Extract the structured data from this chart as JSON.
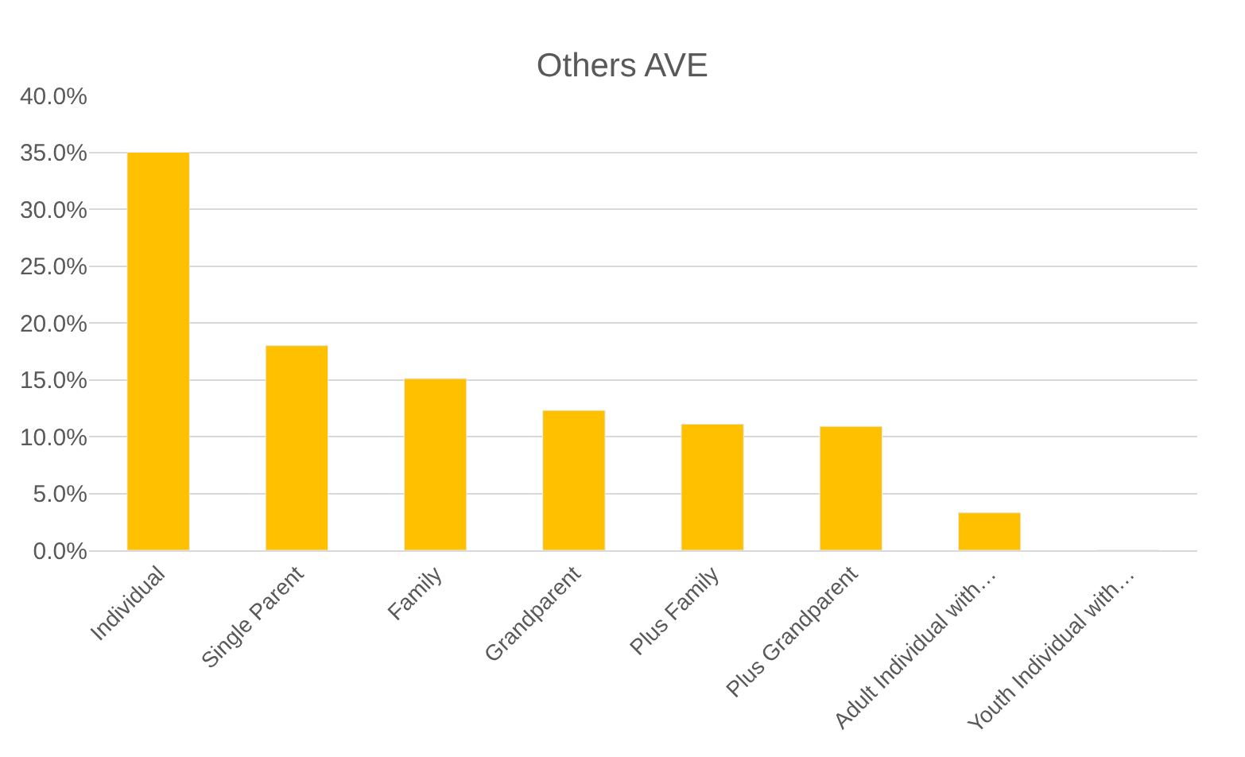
{
  "chart_data": {
    "type": "bar",
    "title": "Others AVE",
    "categories": [
      "Individual",
      "Single Parent",
      "Family",
      "Grandparent",
      "Plus Family",
      "Plus Grandparent",
      "Adult Individual with…",
      "Youth Individual with…"
    ],
    "values": [
      35.0,
      18.0,
      15.1,
      12.3,
      11.1,
      10.9,
      3.3,
      0.0
    ],
    "color": "#ffc000",
    "ylim": [
      0,
      40
    ],
    "yticks": [
      {
        "value": 0,
        "label": "0.0%"
      },
      {
        "value": 5,
        "label": "5.0%"
      },
      {
        "value": 10,
        "label": "10.0%"
      },
      {
        "value": 15,
        "label": "15.0%"
      },
      {
        "value": 20,
        "label": "20.0%"
      },
      {
        "value": 25,
        "label": "25.0%"
      },
      {
        "value": 30,
        "label": "30.0%"
      },
      {
        "value": 35,
        "label": "35.0%"
      },
      {
        "value": 40,
        "label": "40.0%"
      }
    ],
    "grid": "y",
    "legend": false
  }
}
